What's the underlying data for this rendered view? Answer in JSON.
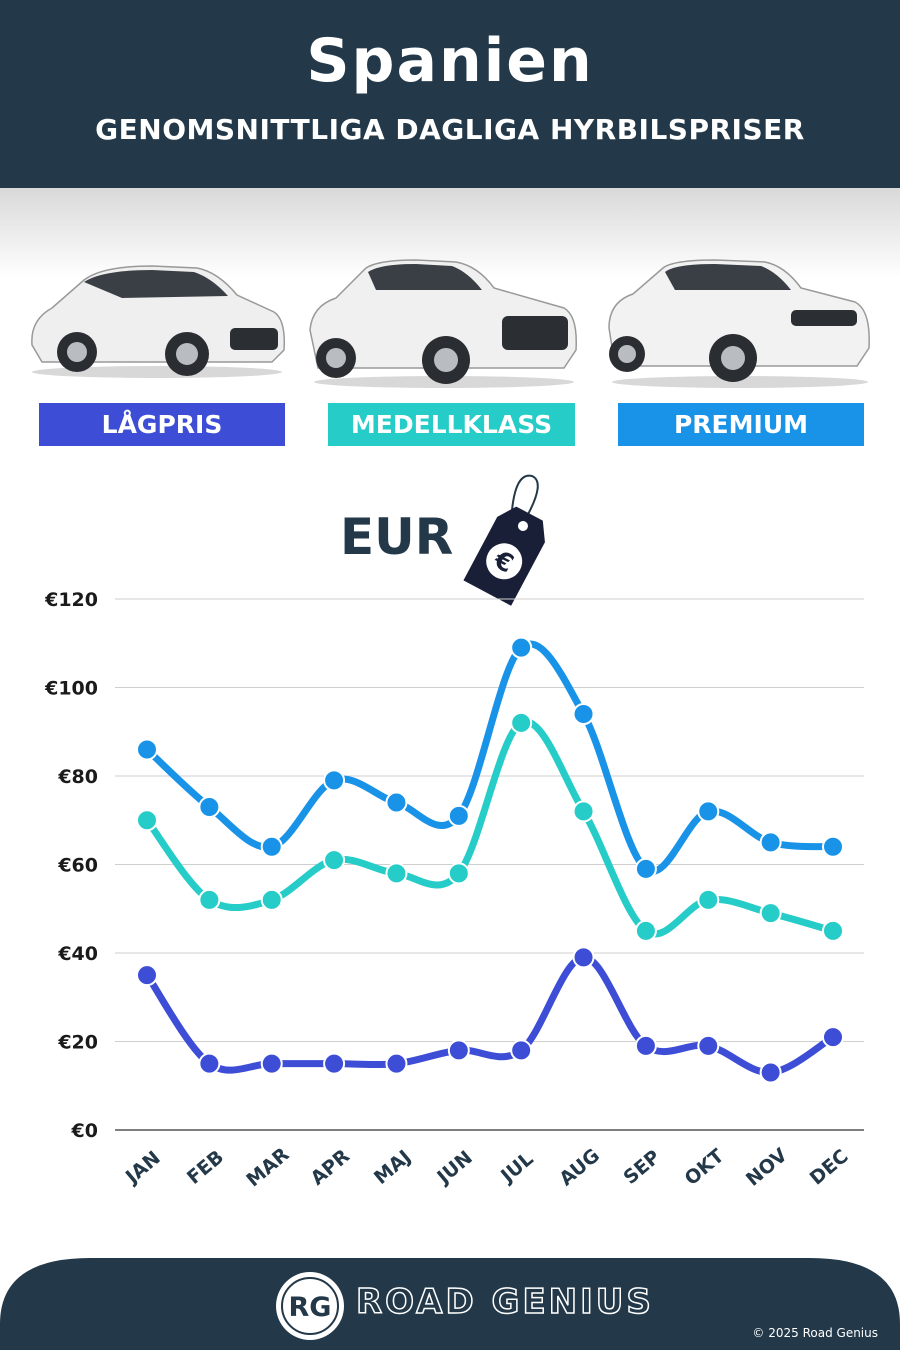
{
  "header": {
    "title": "Spanien",
    "subtitle": "GENOMSNITTLIGA DAGLIGA HYRBILSPRISER"
  },
  "categories": [
    {
      "label": "LÅGPRIS",
      "color": "#3d4dd6"
    },
    {
      "label": "MEDELLKLASS",
      "color": "#26ccc7"
    },
    {
      "label": "PREMIUM",
      "color": "#1993e8"
    }
  ],
  "currency_label": "EUR",
  "currency_icon": "euro-price-tag-icon",
  "chart_data": {
    "type": "line",
    "categories": [
      "JAN",
      "FEB",
      "MAR",
      "APR",
      "MAJ",
      "JUN",
      "JUL",
      "AUG",
      "SEP",
      "OKT",
      "NOV",
      "DEC"
    ],
    "series": [
      {
        "name": "LÅGPRIS",
        "color": "#3d4dd6",
        "values": [
          35,
          15,
          15,
          15,
          15,
          18,
          18,
          39,
          19,
          19,
          13,
          21
        ]
      },
      {
        "name": "MEDELLKLASS",
        "color": "#26ccc7",
        "values": [
          70,
          52,
          52,
          61,
          58,
          58,
          92,
          72,
          45,
          52,
          49,
          45
        ]
      },
      {
        "name": "PREMIUM",
        "color": "#1993e8",
        "values": [
          86,
          73,
          64,
          79,
          74,
          71,
          109,
          94,
          59,
          72,
          65,
          64
        ]
      }
    ],
    "yticks": [
      "€0",
      "€20",
      "€40",
      "€60",
      "€80",
      "€100",
      "€120"
    ],
    "ylim": [
      0,
      120
    ],
    "grid": true
  },
  "footer": {
    "logo_initials": "RG",
    "brand": "ROAD GENIUS",
    "copyright": "© 2025 Road Genius"
  }
}
